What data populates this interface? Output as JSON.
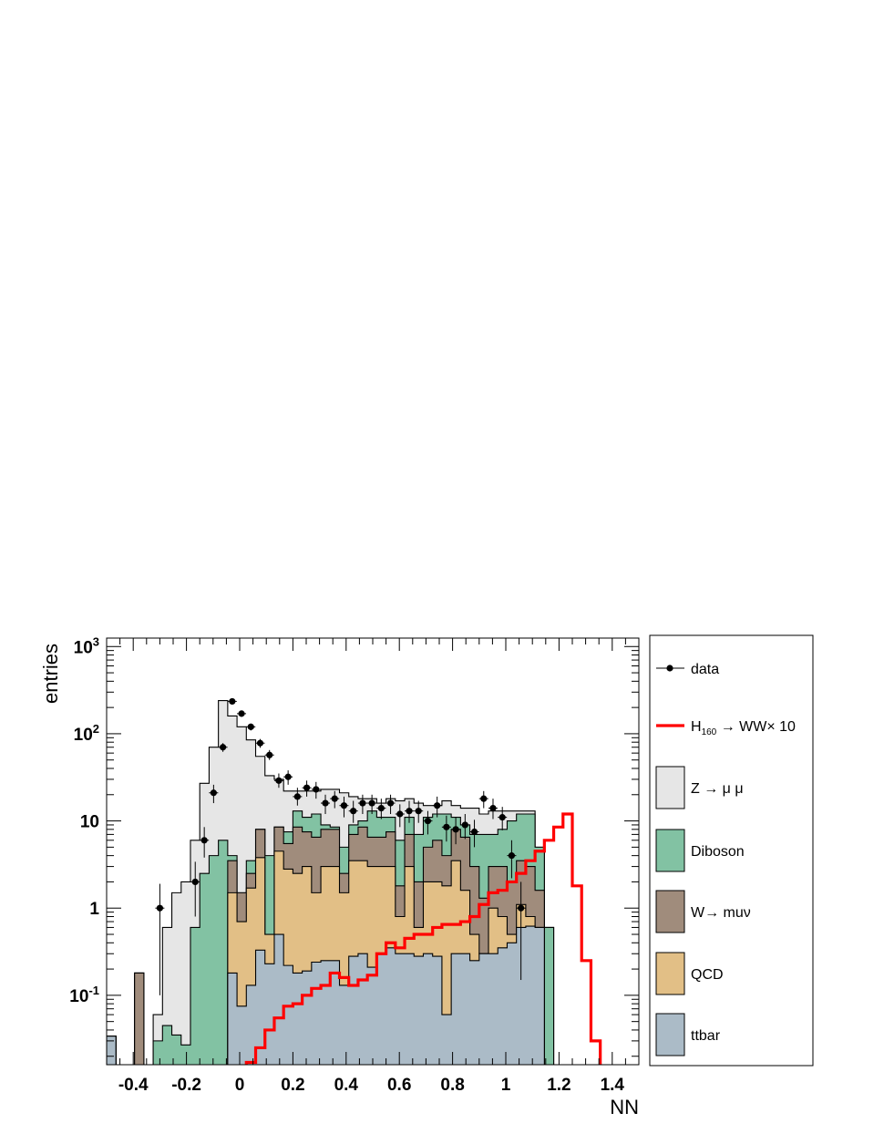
{
  "chart_data": {
    "type": "histogram",
    "xlabel": "NN",
    "ylabel": "entries",
    "xlim": [
      -0.5,
      1.5
    ],
    "ylim": [
      0.016,
      1250
    ],
    "y_scale": "log",
    "bin_width": 0.035,
    "bin_start": -0.5,
    "x_ticks": [
      -0.4,
      -0.2,
      0,
      0.2,
      0.4,
      0.6,
      0.8,
      1,
      1.2,
      1.4
    ],
    "x_tick_labels": [
      "-0.4",
      "-0.2",
      "0",
      "0.2",
      "0.4",
      "0.6",
      "0.8",
      "1",
      "1.2",
      "1.4"
    ],
    "y_ticks": [
      {
        "value": 0.1,
        "base": "10",
        "exp": "-1"
      },
      {
        "value": 1,
        "base": "1",
        "exp": ""
      },
      {
        "value": 10,
        "base": "10",
        "exp": ""
      },
      {
        "value": 100,
        "base": "10",
        "exp": "2"
      },
      {
        "value": 1000,
        "base": "10",
        "exp": "3"
      }
    ],
    "stack_order": [
      "ttbar",
      "QCD",
      "Wmunu",
      "Diboson",
      "Zmumu"
    ],
    "stack_totals": {
      "ttbar": [
        0.034,
        0.015,
        0.015,
        0.015,
        0.015,
        0.015,
        0.015,
        0.015,
        0.015,
        0.015,
        0.015,
        0.015,
        0.015,
        0.18,
        0.075,
        0.13,
        0.33,
        0.23,
        0.5,
        0.22,
        0.18,
        0.19,
        0.24,
        0.25,
        0.25,
        0.13,
        0.28,
        0.3,
        0.21,
        0.3,
        0.35,
        0.3,
        0.3,
        0.28,
        0.3,
        0.28,
        0.06,
        0.3,
        0.3,
        0.25,
        0.3,
        0.3,
        0.35,
        0.4,
        0.6,
        0.62,
        0.6,
        0.015
      ],
      "QCD": [
        0.034,
        0.015,
        0.015,
        0.015,
        0.015,
        0.015,
        0.015,
        0.015,
        0.015,
        0.015,
        0.015,
        0.015,
        0.015,
        1.5,
        0.7,
        1.7,
        3.8,
        0.5,
        4.5,
        2.8,
        2.5,
        3.0,
        1.5,
        3.0,
        3.0,
        1.5,
        3.5,
        3.5,
        3.0,
        3.0,
        3.0,
        0.8,
        3.0,
        0.6,
        2.0,
        2.0,
        1.8,
        3.5,
        1.6,
        0.5,
        0.3,
        1.0,
        0.8,
        0.5,
        1.1,
        0.8,
        0.6,
        0.015
      ],
      "Wmunu": [
        0.034,
        0.015,
        0.015,
        0.18,
        0.015,
        0.015,
        0.015,
        0.015,
        0.015,
        0.015,
        0.015,
        0.015,
        0.015,
        3.5,
        1.5,
        2.5,
        8.0,
        0.5,
        8.5,
        5.5,
        8.5,
        7.5,
        6.5,
        8.0,
        8.0,
        2.5,
        7.0,
        8.5,
        6.5,
        6.5,
        7.5,
        1.8,
        7.0,
        2.0,
        5.0,
        6.0,
        4.0,
        8.0,
        6.5,
        3.0,
        1.3,
        3.0,
        3.0,
        2.0,
        3.5,
        3.0,
        1.6,
        0.015
      ],
      "Diboson": [
        0.034,
        0.015,
        0.015,
        0.18,
        0.015,
        0.03,
        0.045,
        0.035,
        0.027,
        0.6,
        2.5,
        4.0,
        6.0,
        4.0,
        1.5,
        3.5,
        8.0,
        4.0,
        8.5,
        7.5,
        13.0,
        11.0,
        12.0,
        9.0,
        8.5,
        5.0,
        9.0,
        10.0,
        13.0,
        11.0,
        11.0,
        6.0,
        11.0,
        7.0,
        11.0,
        12.0,
        12.0,
        11.0,
        9.0,
        7.0,
        7.0,
        7.0,
        8.0,
        10.0,
        12.0,
        12.0,
        5.0,
        0.6
      ],
      "Zmumu": [
        0.034,
        0.015,
        0.015,
        0.18,
        0.015,
        0.06,
        0.6,
        1.5,
        2.0,
        6.0,
        27.0,
        70.0,
        240.0,
        160.0,
        120.0,
        85.0,
        55.0,
        33.0,
        30.0,
        22.0,
        22.0,
        22.0,
        22.0,
        23.0,
        23.0,
        21.0,
        19.0,
        18.0,
        18.0,
        16.0,
        18.0,
        17.0,
        18.0,
        16.0,
        15.0,
        15.0,
        17.0,
        15.0,
        14.0,
        14.0,
        12.0,
        13.0,
        13.0,
        13.0,
        13.0,
        13.0,
        5.0,
        0.6
      ]
    },
    "signal": {
      "name": "H160 → WW× 10",
      "values": [
        0.015,
        0.015,
        0.015,
        0.015,
        0.015,
        0.015,
        0.015,
        0.015,
        0.015,
        0.015,
        0.015,
        0.015,
        0.015,
        0.015,
        0.015,
        0.017,
        0.025,
        0.04,
        0.055,
        0.075,
        0.08,
        0.1,
        0.12,
        0.13,
        0.18,
        0.16,
        0.13,
        0.15,
        0.17,
        0.3,
        0.4,
        0.35,
        0.45,
        0.5,
        0.5,
        0.6,
        0.65,
        0.65,
        0.7,
        0.8,
        1.1,
        1.5,
        1.6,
        2.0,
        2.5,
        3.5,
        4.5,
        6.0,
        8.5,
        12.0,
        1.8,
        0.25,
        0.03,
        0.015,
        0.015,
        0.015,
        0.015
      ]
    },
    "data_points": [
      {
        "x": -0.3,
        "y": 1.0,
        "lo": 0.1,
        "hi": 1.9
      },
      {
        "x": -0.167,
        "y": 2.0,
        "lo": 0.8,
        "hi": 3.4
      },
      {
        "x": -0.133,
        "y": 6.0,
        "lo": 3.8,
        "hi": 8.5
      },
      {
        "x": -0.098,
        "y": 21.0,
        "lo": 16.0,
        "hi": 26.0
      },
      {
        "x": -0.063,
        "y": 70.0,
        "lo": 62.0,
        "hi": 78.0
      },
      {
        "x": -0.028,
        "y": 235.0,
        "lo": 220.0,
        "hi": 250.0
      },
      {
        "x": 0.007,
        "y": 170.0,
        "lo": 157.0,
        "hi": 183.0
      },
      {
        "x": 0.042,
        "y": 120.0,
        "lo": 109.0,
        "hi": 131.0
      },
      {
        "x": 0.077,
        "y": 78.0,
        "lo": 69.0,
        "hi": 87.0
      },
      {
        "x": 0.112,
        "y": 57.0,
        "lo": 50.0,
        "hi": 65.0
      },
      {
        "x": 0.147,
        "y": 29.0,
        "lo": 24.0,
        "hi": 35.0
      },
      {
        "x": 0.182,
        "y": 32.0,
        "lo": 26.0,
        "hi": 38.0
      },
      {
        "x": 0.217,
        "y": 19.0,
        "lo": 15.0,
        "hi": 24.0
      },
      {
        "x": 0.252,
        "y": 24.0,
        "lo": 19.0,
        "hi": 29.0
      },
      {
        "x": 0.287,
        "y": 23.0,
        "lo": 18.0,
        "hi": 28.0
      },
      {
        "x": 0.322,
        "y": 16.0,
        "lo": 12.0,
        "hi": 20.0
      },
      {
        "x": 0.357,
        "y": 18.0,
        "lo": 14.0,
        "hi": 22.0
      },
      {
        "x": 0.392,
        "y": 15.0,
        "lo": 11.0,
        "hi": 19.0
      },
      {
        "x": 0.427,
        "y": 13.0,
        "lo": 9.5,
        "hi": 17.0
      },
      {
        "x": 0.462,
        "y": 16.0,
        "lo": 12.0,
        "hi": 20.0
      },
      {
        "x": 0.497,
        "y": 16.0,
        "lo": 12.0,
        "hi": 20.0
      },
      {
        "x": 0.532,
        "y": 14.0,
        "lo": 10.5,
        "hi": 18.0
      },
      {
        "x": 0.567,
        "y": 16.0,
        "lo": 12.0,
        "hi": 20.0
      },
      {
        "x": 0.602,
        "y": 12.0,
        "lo": 8.5,
        "hi": 15.5
      },
      {
        "x": 0.637,
        "y": 13.0,
        "lo": 9.5,
        "hi": 17.0
      },
      {
        "x": 0.672,
        "y": 13.0,
        "lo": 9.5,
        "hi": 17.0
      },
      {
        "x": 0.707,
        "y": 10.0,
        "lo": 7.0,
        "hi": 13.0
      },
      {
        "x": 0.742,
        "y": 15.0,
        "lo": 11.0,
        "hi": 19.0
      },
      {
        "x": 0.777,
        "y": 8.5,
        "lo": 5.8,
        "hi": 11.5
      },
      {
        "x": 0.812,
        "y": 8.0,
        "lo": 5.4,
        "hi": 11.0
      },
      {
        "x": 0.847,
        "y": 9.0,
        "lo": 6.2,
        "hi": 12.0
      },
      {
        "x": 0.882,
        "y": 7.5,
        "lo": 5.0,
        "hi": 10.3
      },
      {
        "x": 0.917,
        "y": 18.0,
        "lo": 14.0,
        "hi": 22.0
      },
      {
        "x": 0.952,
        "y": 14.0,
        "lo": 10.5,
        "hi": 18.0
      },
      {
        "x": 0.987,
        "y": 11.0,
        "lo": 7.8,
        "hi": 14.5
      },
      {
        "x": 1.022,
        "y": 4.0,
        "lo": 2.2,
        "hi": 6.0
      },
      {
        "x": 1.057,
        "y": 1.0,
        "lo": 0.15,
        "hi": 2.0
      }
    ],
    "legend": [
      {
        "key": "data",
        "label": "data",
        "style": "marker"
      },
      {
        "key": "signal",
        "label": "H",
        "sub": "160",
        "rest": " → WW× 10",
        "style": "line"
      },
      {
        "key": "Zmumu",
        "label": "Z → μ μ",
        "style": "box"
      },
      {
        "key": "Diboson",
        "label": "Diboson",
        "style": "box"
      },
      {
        "key": "Wmunu",
        "label": "W→ muν",
        "style": "box"
      },
      {
        "key": "QCD",
        "label": "QCD",
        "style": "box"
      },
      {
        "key": "ttbar",
        "label": "ttbar",
        "style": "box"
      }
    ],
    "legend_position": "right",
    "colors": {
      "Zmumu": "#e6e6e6",
      "Diboson": "#82c2a3",
      "Wmunu": "#a08c7c",
      "QCD": "#e2bf86",
      "ttbar": "#abbbc7",
      "signal": "#ff0000",
      "data": "#000000"
    }
  }
}
